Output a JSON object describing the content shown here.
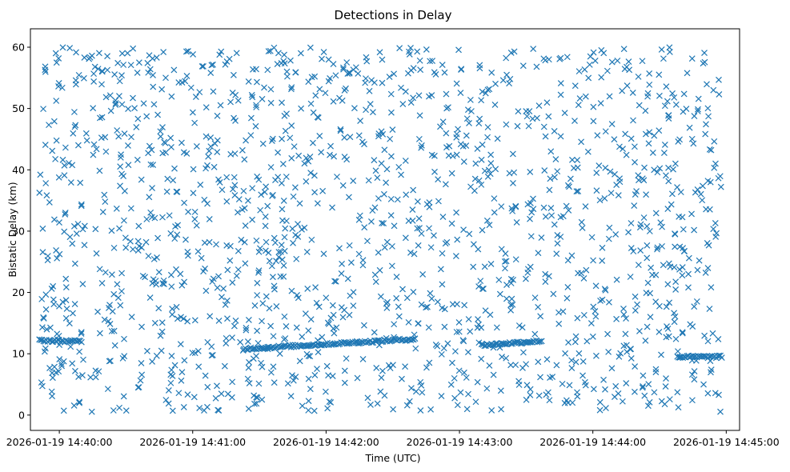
{
  "chart_data": {
    "type": "scatter",
    "title": "Detections in Delay",
    "xlabel": "Time (UTC)",
    "ylabel": "Bistatic Delay (km)",
    "marker": "x",
    "color": "#1f77b4",
    "grid": false,
    "legend": "none",
    "xlim": [
      "2026-01-19 14:39:47",
      "2026-01-19 14:45:06"
    ],
    "ylim": [
      -2.5,
      63
    ],
    "xticks": [
      "2026-01-19 14:40:00",
      "2026-01-19 14:41:00",
      "2026-01-19 14:42:00",
      "2026-01-19 14:43:00",
      "2026-01-19 14:44:00",
      "2026-01-19 14:45:00"
    ],
    "yticks": [
      0,
      10,
      20,
      30,
      40,
      50,
      60
    ],
    "x_start": "2026-01-19 14:39:51",
    "x_end": "2026-01-19 14:44:58",
    "scatter_y_range": [
      0.5,
      60
    ],
    "point_count": 1600,
    "tracks": [
      {
        "start": "2026-01-19 14:39:51",
        "end": "2026-01-19 14:40:10",
        "y": [
          12.2,
          12.0
        ]
      },
      {
        "start": "2026-01-19 14:41:23",
        "end": "2026-01-19 14:42:40",
        "y": [
          10.8,
          12.4
        ]
      },
      {
        "start": "2026-01-19 14:43:10",
        "end": "2026-01-19 14:43:37",
        "y": [
          11.4,
          12.1
        ]
      },
      {
        "start": "2026-01-19 14:44:38",
        "end": "2026-01-19 14:44:58",
        "y": [
          9.5,
          9.5
        ]
      }
    ]
  }
}
